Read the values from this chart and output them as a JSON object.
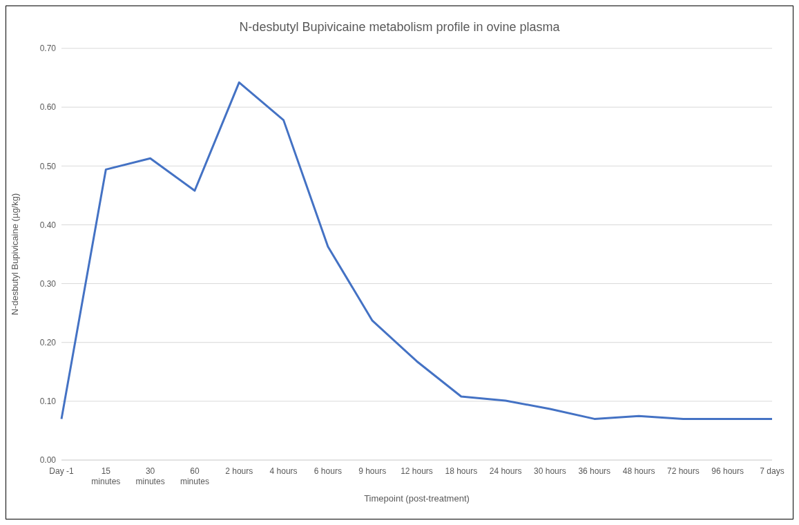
{
  "chart_data": {
    "type": "line",
    "title": "N-desbutyl Bupivicaine metabolism profile in ovine plasma",
    "xlabel": "Timepoint (post-treatment)",
    "ylabel": "N-desbutyl Bupivicaine (µg/kg)",
    "categories": [
      "Day -1",
      "15 minutes",
      "30 minutes",
      "60 minutes",
      "2 hours",
      "4 hours",
      "6 hours",
      "9 hours",
      "12 hours",
      "18 hours",
      "24 hours",
      "30 hours",
      "36 hours",
      "48 hours",
      "72 hours",
      "96 hours",
      "7 days"
    ],
    "series": [
      {
        "color": "#4472c4",
        "values": [
          0.07,
          0.494,
          0.513,
          0.458,
          0.642,
          0.578,
          0.363,
          0.237,
          0.168,
          0.108,
          0.101,
          0.087,
          0.07,
          0.075,
          0.07,
          0.07,
          0.07
        ]
      }
    ],
    "ylim": [
      0,
      0.7
    ],
    "yticks": [
      {
        "value": 0,
        "label": "0.00"
      },
      {
        "value": 0.1,
        "label": "0.10"
      },
      {
        "value": 0.2,
        "label": "0.20"
      },
      {
        "value": 0.3,
        "label": "0.30"
      },
      {
        "value": 0.4,
        "label": "0.40"
      },
      {
        "value": 0.5,
        "label": "0.50"
      },
      {
        "value": 0.6,
        "label": "0.60"
      },
      {
        "value": 0.7,
        "label": "0.70"
      }
    ],
    "grid": "y",
    "legend": false,
    "marker": "none",
    "line_style": "solid"
  }
}
